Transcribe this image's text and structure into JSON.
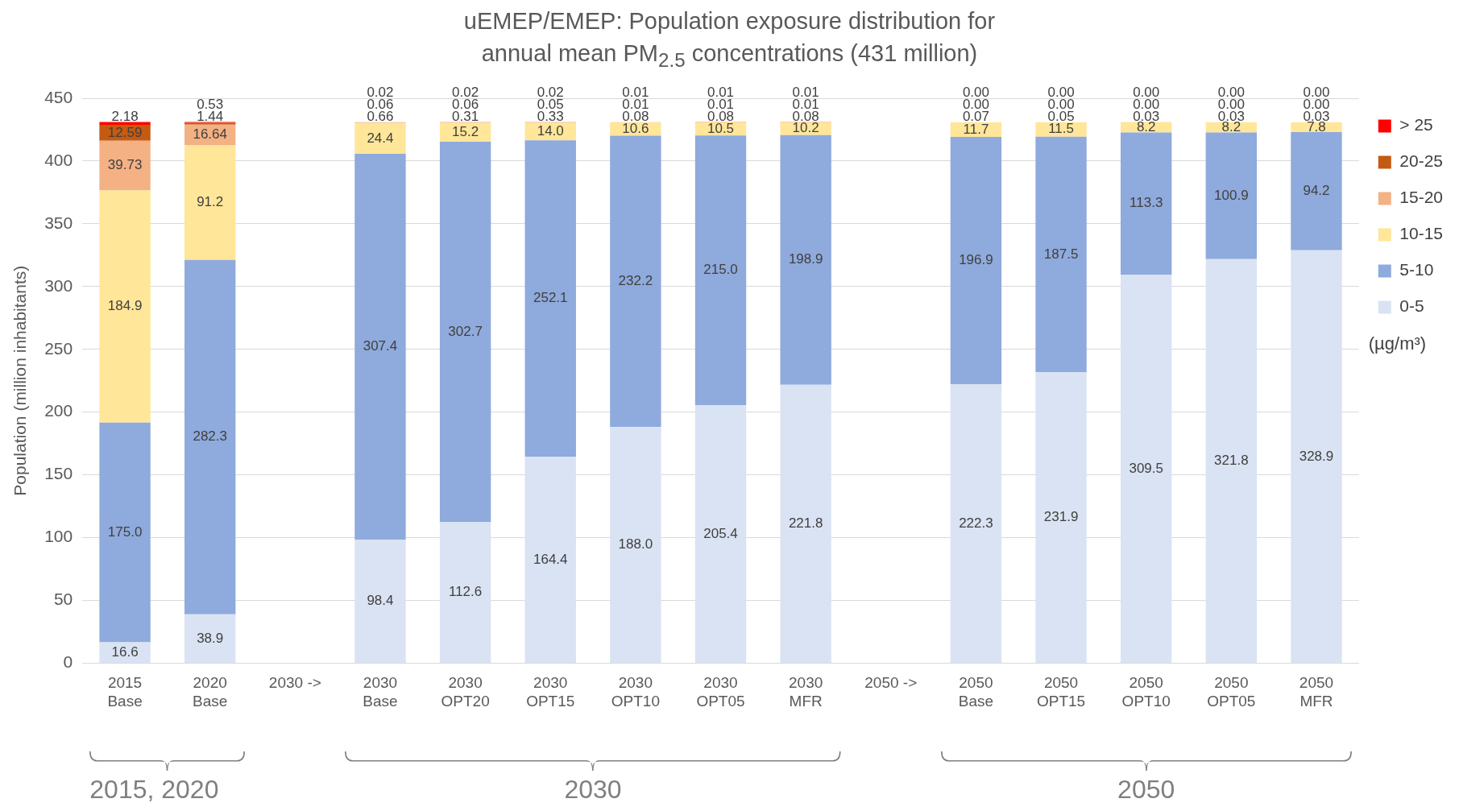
{
  "chart_data": {
    "type": "bar",
    "title": "uEMEP/EMEP: Population exposure distribution for annual mean PM$_{2.5}$ concentrations (431 million)",
    "ylabel": "Population (million inhabitants)",
    "categories": [
      "2015\nBase",
      "2020\nBase",
      "2030 ->",
      "2030\nBase",
      "2030\nOPT20",
      "2030\nOPT15",
      "2030\nOPT10",
      "2030\nOPT05",
      "2030\nMFR",
      "2050 ->",
      "2050\nBase",
      "2050\nOPT15",
      "2050\nOPT10",
      "2050\nOPT05",
      "2050\nMFR"
    ],
    "stacked": true,
    "ylim": [
      0,
      450
    ],
    "yticks": [
      0,
      50,
      100,
      150,
      200,
      250,
      300,
      350,
      400,
      450
    ],
    "grid": "y",
    "legend": "right",
    "legend_title": "(µg/m³)",
    "series": [
      {
        "name": "0-5",
        "color": "#dae3f3",
        "values": [
          16.6,
          38.9,
          null,
          98.4,
          112.6,
          164.4,
          188.0,
          205.4,
          221.8,
          null,
          222.3,
          231.9,
          309.5,
          321.8,
          328.9
        ],
        "value_labels": [
          "16.6",
          "38.9",
          null,
          "98.4",
          "112.6",
          "164.4",
          "188.0",
          "205.4",
          "221.8",
          null,
          "222.3",
          "231.9",
          "309.5",
          "321.8",
          "328.9"
        ]
      },
      {
        "name": "5-10",
        "color": "#8faadc",
        "values": [
          175.0,
          282.3,
          null,
          307.4,
          302.7,
          252.1,
          232.2,
          215.0,
          198.9,
          null,
          196.9,
          187.5,
          113.3,
          100.9,
          94.2
        ],
        "value_labels": [
          "175.0",
          "282.3",
          null,
          "307.4",
          "302.7",
          "252.1",
          "232.2",
          "215.0",
          "198.9",
          null,
          "196.9",
          "187.5",
          "113.3",
          "100.9",
          "94.2"
        ]
      },
      {
        "name": "10-15",
        "color": "#ffe699",
        "values": [
          184.9,
          91.2,
          null,
          24.4,
          15.2,
          14.0,
          10.6,
          10.5,
          10.2,
          null,
          11.7,
          11.5,
          8.2,
          8.2,
          7.8
        ],
        "value_labels": [
          "184.9",
          "91.2",
          null,
          "24.4",
          "15.2",
          "14.0",
          "10.6",
          "10.5",
          "10.2",
          null,
          "11.7",
          "11.5",
          "8.2",
          "8.2",
          "7.8"
        ]
      },
      {
        "name": "15-20",
        "color": "#f4b183",
        "values": [
          39.73,
          16.64,
          null,
          0.66,
          0.31,
          0.33,
          0.08,
          0.08,
          0.08,
          null,
          0.07,
          0.05,
          0.03,
          0.03,
          0.03
        ],
        "value_labels": [
          "39.73",
          "16.64",
          null,
          "0.66",
          "0.31",
          "0.33",
          "0.08",
          "0.08",
          "0.08",
          null,
          "0.07",
          "0.05",
          "0.03",
          "0.03",
          "0.03"
        ]
      },
      {
        "name": "20-25",
        "color": "#c55a11",
        "values": [
          12.59,
          1.44,
          null,
          0.06,
          0.06,
          0.05,
          0.01,
          0.01,
          0.01,
          null,
          0,
          0,
          0,
          0,
          0
        ],
        "value_labels": [
          "12.59",
          "1.44",
          null,
          "0.06",
          "0.06",
          "0.05",
          "0.01",
          "0.01",
          "0.01",
          null,
          "0.00",
          "0.00",
          "0.00",
          "0.00",
          "0.00"
        ]
      },
      {
        "name": "> 25",
        "color": "#ff0000",
        "values": [
          2.18,
          0.53,
          null,
          0.02,
          0.02,
          0.02,
          0.01,
          0.01,
          0.01,
          null,
          0,
          0,
          0,
          0,
          0
        ],
        "value_labels": [
          "2.18",
          "0.53",
          null,
          "0.02",
          "0.02",
          "0.02",
          "0.01",
          "0.01",
          "0.01",
          null,
          "0.00",
          "0.00",
          "0.00",
          "0.00",
          "0.00"
        ]
      }
    ],
    "annotations": [
      "2015, 2020",
      "2030",
      "2050"
    ]
  }
}
